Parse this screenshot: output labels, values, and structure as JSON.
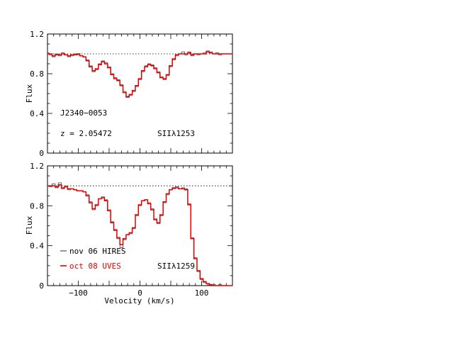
{
  "chart_data": [
    {
      "type": "line",
      "panel": "top",
      "xlim": [
        -150,
        150
      ],
      "ylim": [
        0,
        1.2
      ],
      "ylabel": "Flux",
      "yticks": [
        0,
        0.4,
        0.8,
        1.2
      ],
      "ytick_labels": [
        "0",
        "0.4",
        "0.8",
        "1.2"
      ],
      "continuum": 1.0,
      "annotations": {
        "object": "J2340−0053",
        "redshift": "z  =  2.05472",
        "line": "SIIλ1253"
      },
      "series": [
        {
          "color": "#555555",
          "style": "step",
          "x": [
            -150,
            -145,
            -140,
            -135,
            -130,
            -125,
            -120,
            -115,
            -110,
            -105,
            -100,
            -95,
            -90,
            -85,
            -80,
            -75,
            -70,
            -65,
            -60,
            -55,
            -50,
            -45,
            -40,
            -35,
            -30,
            -25,
            -20,
            -15,
            -10,
            -5,
            0,
            5,
            10,
            15,
            20,
            25,
            30,
            35,
            40,
            45,
            50,
            55,
            60,
            65,
            70,
            75,
            80,
            85,
            90,
            95,
            100,
            105,
            110,
            115,
            120,
            125,
            130,
            135,
            140,
            145,
            150
          ],
          "y": [
            1.01,
            0.99,
            0.97,
            1.0,
            0.98,
            1.01,
            0.99,
            0.97,
            0.98,
            1.0,
            0.99,
            0.98,
            0.97,
            0.94,
            0.88,
            0.82,
            0.84,
            0.9,
            0.93,
            0.91,
            0.87,
            0.8,
            0.76,
            0.74,
            0.69,
            0.62,
            0.56,
            0.58,
            0.62,
            0.67,
            0.74,
            0.82,
            0.88,
            0.9,
            0.89,
            0.86,
            0.82,
            0.77,
            0.74,
            0.78,
            0.87,
            0.94,
            0.98,
            1.0,
            1.02,
            0.99,
            1.02,
            0.98,
            1.0,
            0.99,
            1.0,
            1.01,
            1.03,
            1.02,
            1.0,
            1.01,
            0.99,
            1.0,
            1.0,
            1.0,
            1.0
          ]
        },
        {
          "color": "#e00000",
          "style": "step",
          "x": [
            -150,
            -145,
            -140,
            -135,
            -130,
            -125,
            -120,
            -115,
            -110,
            -105,
            -100,
            -95,
            -90,
            -85,
            -80,
            -75,
            -70,
            -65,
            -60,
            -55,
            -50,
            -45,
            -40,
            -35,
            -30,
            -25,
            -20,
            -15,
            -10,
            -5,
            0,
            5,
            10,
            15,
            20,
            25,
            30,
            35,
            40,
            45,
            50,
            55,
            60,
            65,
            70,
            75,
            80,
            85,
            90,
            95,
            100,
            105,
            110,
            115,
            120,
            125,
            130,
            135,
            140,
            145,
            150
          ],
          "y": [
            1.0,
            1.0,
            0.98,
            0.99,
            0.99,
            1.0,
            0.99,
            0.98,
            0.99,
            0.99,
            1.0,
            0.98,
            0.97,
            0.93,
            0.87,
            0.83,
            0.85,
            0.89,
            0.92,
            0.9,
            0.86,
            0.79,
            0.75,
            0.73,
            0.68,
            0.61,
            0.57,
            0.59,
            0.63,
            0.68,
            0.75,
            0.83,
            0.87,
            0.89,
            0.88,
            0.85,
            0.81,
            0.76,
            0.75,
            0.79,
            0.88,
            0.95,
            0.99,
            1.0,
            1.0,
            1.0,
            1.01,
            0.99,
            1.0,
            1.0,
            1.0,
            1.0,
            1.02,
            1.01,
            1.0,
            1.0,
            1.0,
            1.0,
            1.0,
            1.0,
            1.0
          ]
        }
      ]
    },
    {
      "type": "line",
      "panel": "bottom",
      "xlim": [
        -150,
        150
      ],
      "ylim": [
        0,
        1.2
      ],
      "xlabel": "Velocity (km/s)",
      "ylabel": "Flux",
      "xticks": [
        -100,
        0,
        100
      ],
      "xtick_labels": [
        "−100",
        "0",
        "100"
      ],
      "yticks": [
        0,
        0.4,
        0.8,
        1.2
      ],
      "ytick_labels": [
        "0",
        "0.4",
        "0.8",
        "1.2"
      ],
      "continuum": 1.0,
      "annotations": {
        "line": "SIIλ1259"
      },
      "legend": {
        "placement": "bottom-left",
        "entries": [
          {
            "label": "nov 06 HIRES",
            "color": "#555555"
          },
          {
            "label": "oct 08 UVES",
            "color": "#e00000"
          }
        ]
      },
      "series": [
        {
          "name": "nov 06 HIRES",
          "color": "#555555",
          "style": "step",
          "x": [
            -150,
            -145,
            -140,
            -135,
            -130,
            -125,
            -120,
            -115,
            -110,
            -105,
            -100,
            -95,
            -90,
            -85,
            -80,
            -75,
            -70,
            -65,
            -60,
            -55,
            -50,
            -45,
            -40,
            -35,
            -30,
            -25,
            -20,
            -15,
            -10,
            -5,
            0,
            5,
            10,
            15,
            20,
            25,
            30,
            35,
            40,
            45,
            50,
            55,
            60,
            65,
            70,
            75,
            80,
            85,
            90,
            95,
            100,
            105,
            110,
            115,
            120,
            125,
            130,
            135,
            140,
            145,
            150
          ],
          "y": [
            1.0,
            0.99,
            1.02,
            0.98,
            1.03,
            0.97,
            1.0,
            0.96,
            0.97,
            0.96,
            0.95,
            0.95,
            0.94,
            0.91,
            0.84,
            0.76,
            0.8,
            0.87,
            0.89,
            0.86,
            0.76,
            0.64,
            0.55,
            0.47,
            0.38,
            0.46,
            0.51,
            0.52,
            0.57,
            0.7,
            0.8,
            0.85,
            0.86,
            0.83,
            0.77,
            0.67,
            0.62,
            0.7,
            0.83,
            0.91,
            0.96,
            0.97,
            0.99,
            0.97,
            0.98,
            0.97,
            0.82,
            0.48,
            0.28,
            0.14,
            0.06,
            0.03,
            0.02,
            0.01,
            0.01,
            0.0,
            0.01,
            0.0,
            0.0,
            0.0,
            0.0
          ]
        },
        {
          "name": "oct 08 UVES",
          "color": "#e00000",
          "style": "step",
          "x": [
            -150,
            -145,
            -140,
            -135,
            -130,
            -125,
            -120,
            -115,
            -110,
            -105,
            -100,
            -95,
            -90,
            -85,
            -80,
            -75,
            -70,
            -65,
            -60,
            -55,
            -50,
            -45,
            -40,
            -35,
            -30,
            -25,
            -20,
            -15,
            -10,
            -5,
            0,
            5,
            10,
            15,
            20,
            25,
            30,
            35,
            40,
            45,
            50,
            55,
            60,
            65,
            70,
            75,
            80,
            85,
            90,
            95,
            100,
            105,
            110,
            115,
            120,
            125,
            130,
            135,
            140,
            145,
            150
          ],
          "y": [
            1.0,
            1.0,
            1.0,
            0.99,
            1.01,
            0.98,
            0.99,
            0.97,
            0.97,
            0.96,
            0.95,
            0.95,
            0.94,
            0.9,
            0.83,
            0.77,
            0.81,
            0.87,
            0.88,
            0.85,
            0.75,
            0.63,
            0.56,
            0.48,
            0.41,
            0.47,
            0.51,
            0.53,
            0.58,
            0.71,
            0.81,
            0.85,
            0.86,
            0.82,
            0.76,
            0.66,
            0.63,
            0.71,
            0.84,
            0.92,
            0.96,
            0.98,
            0.98,
            0.97,
            0.97,
            0.96,
            0.81,
            0.47,
            0.27,
            0.15,
            0.07,
            0.04,
            0.02,
            0.01,
            0.0,
            0.0,
            0.0,
            0.0,
            0.0,
            0.0,
            0.0
          ]
        }
      ]
    }
  ]
}
